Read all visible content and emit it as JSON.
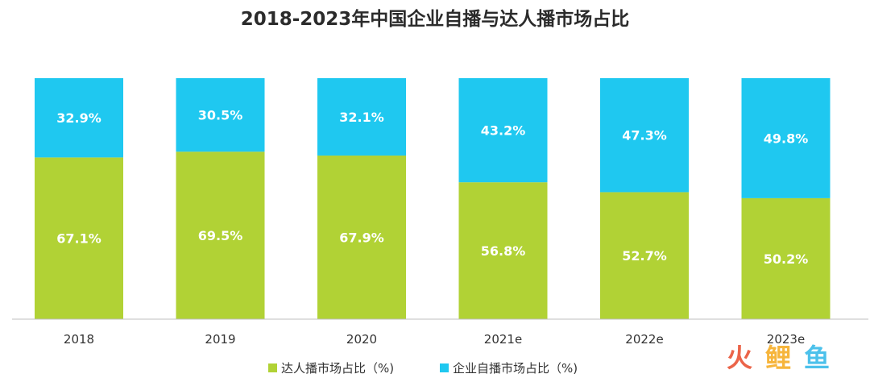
{
  "chart_data": {
    "type": "bar",
    "stacked": true,
    "percent_stacked": true,
    "title": "2018-2023年中国企业自播与达人播市场占比",
    "categories": [
      "2018",
      "2019",
      "2020",
      "2021e",
      "2022e",
      "2023e"
    ],
    "series": [
      {
        "name": "达人播市场占比（%)",
        "color": "#b1d235",
        "values": [
          67.1,
          69.5,
          67.9,
          56.8,
          52.7,
          50.2
        ],
        "labels": [
          "67.1%",
          "69.5%",
          "67.9%",
          "56.8%",
          "52.7%",
          "50.2%"
        ]
      },
      {
        "name": "企业自播市场占比（%)",
        "color": "#1fc8f0",
        "values": [
          32.9,
          30.5,
          32.1,
          43.2,
          47.3,
          49.8
        ],
        "labels": [
          "32.9%",
          "30.5%",
          "32.1%",
          "43.2%",
          "47.3%",
          "49.8%"
        ]
      }
    ],
    "ylim": [
      0,
      100
    ],
    "xlabel": "",
    "ylabel": "",
    "grid": false,
    "legend_position": "bottom"
  },
  "watermark": {
    "text": "火鲤鱼",
    "colors": [
      "#e84a2a",
      "#f5a91b",
      "#2db7e8"
    ]
  }
}
